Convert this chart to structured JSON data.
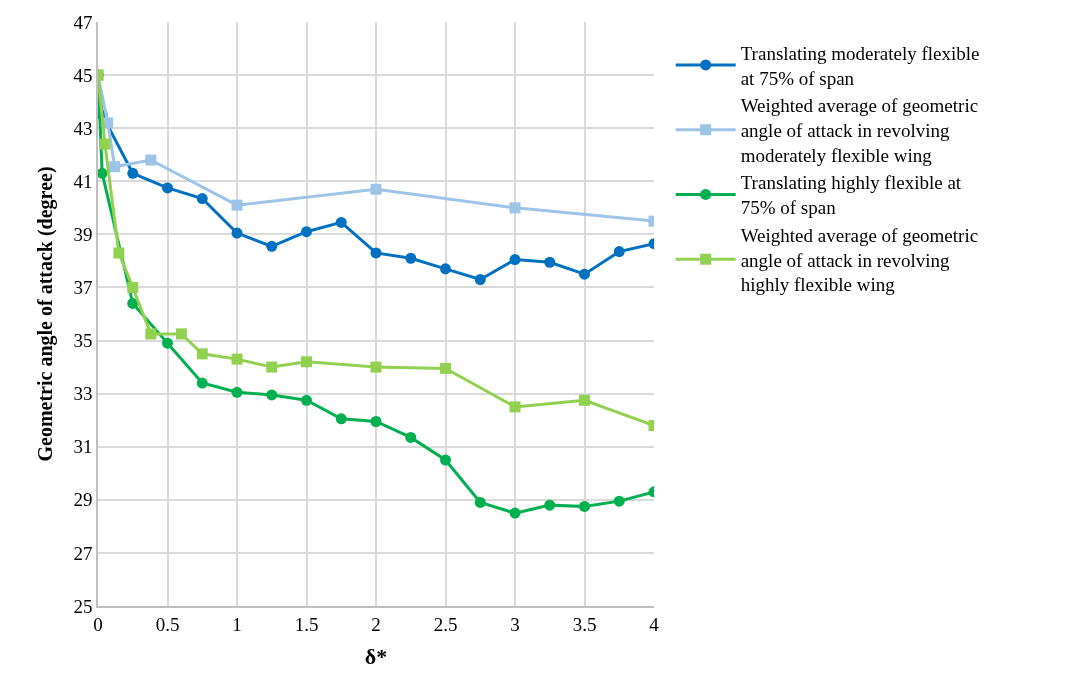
{
  "chart_data": {
    "type": "line",
    "xlabel": "δ*",
    "ylabel": "Geometric angle of attack (degree)",
    "xlim": [
      0,
      4
    ],
    "xticks": [
      0,
      0.5,
      1,
      1.5,
      2,
      2.5,
      3,
      3.5,
      4
    ],
    "ylim": [
      25,
      47
    ],
    "yticks": [
      25,
      27,
      29,
      31,
      33,
      35,
      37,
      39,
      41,
      43,
      45,
      47
    ],
    "grid": true,
    "legend": "right",
    "line_style": "solid",
    "series": [
      {
        "name": "Translating moderately flexible at 75% of span",
        "color": "#0070c0",
        "marker": "circle",
        "x": [
          0,
          0.03,
          0.25,
          0.5,
          0.75,
          1,
          1.25,
          1.5,
          1.75,
          2,
          2.25,
          2.5,
          2.75,
          3,
          3.25,
          3.5,
          3.75,
          4
        ],
        "values": [
          45,
          43.5,
          41.3,
          40.75,
          40.35,
          39.05,
          38.55,
          39.1,
          39.45,
          38.3,
          38.1,
          37.7,
          37.3,
          38.05,
          37.95,
          37.5,
          38.35,
          38.65
        ]
      },
      {
        "name": "Weighted average of geometric angle of attack in revolving moderately flexible wing",
        "color": "#9dc3e6",
        "marker": "square",
        "x": [
          0,
          0.07,
          0.12,
          0.38,
          1,
          2,
          3,
          4
        ],
        "values": [
          45,
          43.2,
          41.55,
          41.8,
          40.1,
          40.7,
          40.0,
          39.5
        ]
      },
      {
        "name": "Translating highly flexible at 75% of span",
        "color": "#00b050",
        "marker": "circle",
        "x": [
          0,
          0.03,
          0.25,
          0.5,
          0.75,
          1,
          1.25,
          1.5,
          1.75,
          2,
          2.25,
          2.5,
          2.75,
          3,
          3.25,
          3.5,
          3.75,
          4
        ],
        "values": [
          45,
          41.3,
          36.4,
          34.9,
          33.4,
          33.05,
          32.95,
          32.75,
          32.05,
          31.95,
          31.35,
          30.5,
          28.9,
          28.5,
          28.8,
          28.75,
          28.95,
          29.3
        ]
      },
      {
        "name": "Weighted average of geometric angle of attack in revolving highly flexible wing",
        "color": "#92d050",
        "marker": "square",
        "x": [
          0,
          0.05,
          0.15,
          0.25,
          0.38,
          0.6,
          0.75,
          1,
          1.25,
          1.5,
          2,
          2.5,
          3,
          3.5,
          4
        ],
        "values": [
          45,
          42.4,
          38.3,
          37.0,
          35.25,
          35.25,
          34.5,
          34.3,
          34.0,
          34.2,
          34.0,
          33.95,
          32.5,
          32.75,
          31.8
        ]
      }
    ]
  }
}
